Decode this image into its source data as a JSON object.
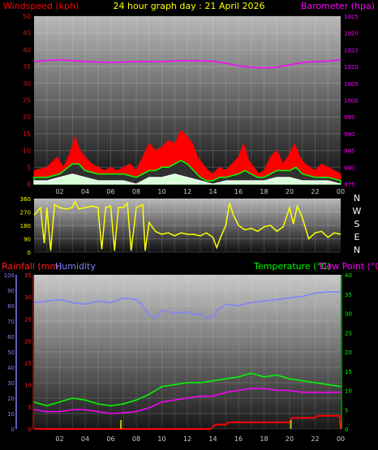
{
  "header": {
    "title": "24 hour graph day : 21 April 2026",
    "windspeed_label": "Windspeed (kph)",
    "barometer_label": "Barometer (hpa)"
  },
  "bottom_header": {
    "rainfall_label": "Rainfall (mm)",
    "humidity_label": "Humidity",
    "temperature_label": "Temperature (°C)",
    "dewpoint_label": "Dew Point (°C)"
  },
  "colors": {
    "windspeed": "#ff0000",
    "gust": "#ff0000",
    "avg_wind": "#00ff00",
    "wind_low": "#d8ffd8",
    "barometer": "#ff00ff",
    "direction": "#ffff00",
    "rainfall": "#ff0000",
    "humidity": "#8080ff",
    "temperature": "#00ff00",
    "dewpoint": "#ff00ff",
    "rain_rate": "#c0c000"
  },
  "chart_data": [
    {
      "type": "area",
      "name": "wind-barometer",
      "x_ticks": [
        "02",
        "04",
        "06",
        "08",
        "10",
        "12",
        "14",
        "16",
        "18",
        "20",
        "22",
        "00"
      ],
      "y_left_ticks": [
        "0",
        "5",
        "10",
        "15",
        "20",
        "25",
        "30",
        "35",
        "40",
        "45",
        "50"
      ],
      "y_left_range": [
        0,
        50
      ],
      "y_right_ticks": [
        "975",
        "980",
        "985",
        "990",
        "995",
        "1000",
        "1005",
        "1010",
        "1015",
        "1020",
        "1025"
      ],
      "y_right_range": [
        975,
        1025
      ],
      "x_range_hours": [
        0,
        24
      ],
      "gust": [
        [
          0,
          4
        ],
        [
          1,
          5
        ],
        [
          1.8,
          8
        ],
        [
          2.3,
          5
        ],
        [
          2.8,
          9
        ],
        [
          3.2,
          14
        ],
        [
          3.6,
          10
        ],
        [
          4,
          8
        ],
        [
          4.5,
          6
        ],
        [
          5,
          5
        ],
        [
          5.5,
          4
        ],
        [
          6,
          5
        ],
        [
          6.5,
          4
        ],
        [
          7,
          5
        ],
        [
          7.5,
          6
        ],
        [
          8,
          4
        ],
        [
          8.5,
          8
        ],
        [
          9,
          12
        ],
        [
          9.5,
          10
        ],
        [
          10,
          11
        ],
        [
          10.5,
          13
        ],
        [
          11,
          12
        ],
        [
          11.5,
          16
        ],
        [
          12,
          14
        ],
        [
          12.4,
          12
        ],
        [
          12.8,
          8
        ],
        [
          13.2,
          6
        ],
        [
          13.6,
          4
        ],
        [
          14,
          3
        ],
        [
          14.5,
          5
        ],
        [
          15,
          4
        ],
        [
          15.5,
          6
        ],
        [
          16,
          8
        ],
        [
          16.4,
          12
        ],
        [
          16.8,
          7
        ],
        [
          17.2,
          5
        ],
        [
          17.6,
          3
        ],
        [
          18,
          4
        ],
        [
          18.5,
          8
        ],
        [
          19,
          10
        ],
        [
          19.5,
          6
        ],
        [
          20,
          9
        ],
        [
          20.4,
          12
        ],
        [
          20.8,
          8
        ],
        [
          21.2,
          6
        ],
        [
          21.6,
          5
        ],
        [
          22,
          4
        ],
        [
          22.5,
          6
        ],
        [
          23,
          5
        ],
        [
          23.5,
          4
        ],
        [
          24,
          3
        ]
      ],
      "avg_wind": [
        [
          0,
          2
        ],
        [
          1,
          2
        ],
        [
          2,
          3
        ],
        [
          3,
          6
        ],
        [
          3.5,
          6
        ],
        [
          4,
          4
        ],
        [
          5,
          3
        ],
        [
          6,
          3
        ],
        [
          7,
          3
        ],
        [
          8,
          2
        ],
        [
          8.5,
          3
        ],
        [
          9,
          4
        ],
        [
          9.5,
          4
        ],
        [
          10,
          5
        ],
        [
          10.5,
          5
        ],
        [
          11,
          6
        ],
        [
          11.5,
          7
        ],
        [
          12,
          6
        ],
        [
          12.5,
          4
        ],
        [
          13,
          2
        ],
        [
          13.5,
          1
        ],
        [
          14,
          1
        ],
        [
          14.5,
          2
        ],
        [
          15,
          2
        ],
        [
          16,
          3
        ],
        [
          16.5,
          4
        ],
        [
          17,
          3
        ],
        [
          17.5,
          2
        ],
        [
          18,
          2
        ],
        [
          18.5,
          3
        ],
        [
          19,
          4
        ],
        [
          20,
          4
        ],
        [
          20.5,
          5
        ],
        [
          21,
          3
        ],
        [
          22,
          2
        ],
        [
          23,
          2
        ],
        [
          24,
          1
        ]
      ],
      "wind_low": [
        [
          0,
          1
        ],
        [
          1,
          1
        ],
        [
          2,
          2
        ],
        [
          3,
          3
        ],
        [
          4,
          2
        ],
        [
          5,
          1
        ],
        [
          6,
          1
        ],
        [
          7,
          1
        ],
        [
          8,
          0
        ],
        [
          9,
          2
        ],
        [
          10,
          2
        ],
        [
          11,
          3
        ],
        [
          12,
          2
        ],
        [
          13,
          1
        ],
        [
          14,
          0
        ],
        [
          15,
          1
        ],
        [
          16,
          1
        ],
        [
          17,
          1
        ],
        [
          18,
          1
        ],
        [
          19,
          2
        ],
        [
          20,
          2
        ],
        [
          21,
          1
        ],
        [
          22,
          1
        ],
        [
          23,
          1
        ],
        [
          24,
          0
        ]
      ],
      "barometer": [
        [
          0,
          1011.5
        ],
        [
          2,
          1012.0
        ],
        [
          4,
          1011.5
        ],
        [
          6,
          1011.2
        ],
        [
          8,
          1011.5
        ],
        [
          10,
          1011.5
        ],
        [
          12,
          1011.8
        ],
        [
          14,
          1011.6
        ],
        [
          15,
          1011.0
        ],
        [
          16,
          1010.2
        ],
        [
          17,
          1009.8
        ],
        [
          18,
          1009.6
        ],
        [
          19,
          1009.8
        ],
        [
          20,
          1010.5
        ],
        [
          21,
          1011.2
        ],
        [
          22,
          1011.5
        ],
        [
          23,
          1011.6
        ],
        [
          24,
          1012.0
        ]
      ]
    },
    {
      "type": "line",
      "name": "wind-direction",
      "y_left_ticks": [
        "360",
        "270",
        "180",
        "90",
        "0"
      ],
      "y_right_labels": [
        "N",
        "W",
        "S",
        "E",
        "N"
      ],
      "y_range": [
        0,
        360
      ],
      "x_range_hours": [
        0,
        24
      ],
      "direction": [
        [
          0,
          250
        ],
        [
          0.5,
          300
        ],
        [
          0.8,
          60
        ],
        [
          1,
          300
        ],
        [
          1.3,
          10
        ],
        [
          1.6,
          320
        ],
        [
          2,
          300
        ],
        [
          2.5,
          290
        ],
        [
          3,
          300
        ],
        [
          3.2,
          340
        ],
        [
          3.5,
          290
        ],
        [
          4,
          300
        ],
        [
          4.5,
          310
        ],
        [
          5,
          300
        ],
        [
          5.3,
          20
        ],
        [
          5.6,
          300
        ],
        [
          6,
          310
        ],
        [
          6.3,
          10
        ],
        [
          6.6,
          300
        ],
        [
          7,
          300
        ],
        [
          7.3,
          330
        ],
        [
          7.6,
          10
        ],
        [
          8,
          300
        ],
        [
          8.5,
          320
        ],
        [
          8.7,
          10
        ],
        [
          9,
          200
        ],
        [
          9.5,
          140
        ],
        [
          10,
          120
        ],
        [
          10.5,
          130
        ],
        [
          11,
          110
        ],
        [
          11.5,
          130
        ],
        [
          12,
          120
        ],
        [
          12.5,
          120
        ],
        [
          13,
          110
        ],
        [
          13.5,
          130
        ],
        [
          14,
          100
        ],
        [
          14.3,
          30
        ],
        [
          14.6,
          100
        ],
        [
          15,
          180
        ],
        [
          15.3,
          330
        ],
        [
          15.6,
          250
        ],
        [
          16,
          180
        ],
        [
          16.5,
          150
        ],
        [
          17,
          160
        ],
        [
          17.5,
          140
        ],
        [
          18,
          170
        ],
        [
          18.5,
          180
        ],
        [
          19,
          140
        ],
        [
          19.5,
          170
        ],
        [
          20,
          300
        ],
        [
          20.3,
          190
        ],
        [
          20.6,
          310
        ],
        [
          21,
          230
        ],
        [
          21.5,
          90
        ],
        [
          22,
          130
        ],
        [
          22.5,
          140
        ],
        [
          23,
          100
        ],
        [
          23.5,
          130
        ],
        [
          24,
          120
        ]
      ]
    },
    {
      "type": "line",
      "name": "rain-humidity-temperature",
      "x_ticks": [
        "02",
        "04",
        "06",
        "08",
        "10",
        "12",
        "14",
        "16",
        "18",
        "20",
        "22",
        "00"
      ],
      "y_left_outer_ticks": [
        "0",
        "10",
        "20",
        "30",
        "40",
        "50",
        "60",
        "70",
        "80",
        "90",
        "100"
      ],
      "y_left_outer_range": [
        0,
        100
      ],
      "y_left_inner_ticks": [
        "0",
        "5",
        "10",
        "15",
        "20",
        "25",
        "30",
        "35"
      ],
      "y_left_inner_range": [
        0,
        35
      ],
      "y_right_ticks": [
        "0",
        "5",
        "10",
        "15",
        "20",
        "25",
        "30",
        "35",
        "40"
      ],
      "y_right_range": [
        0,
        40
      ],
      "x_range_hours": [
        0,
        24
      ],
      "humidity": [
        [
          0,
          82
        ],
        [
          1,
          83
        ],
        [
          2,
          84
        ],
        [
          3,
          82
        ],
        [
          4,
          81
        ],
        [
          5,
          83
        ],
        [
          6,
          82
        ],
        [
          7,
          85
        ],
        [
          8,
          84
        ],
        [
          8.5,
          80
        ],
        [
          9,
          74
        ],
        [
          9.5,
          72
        ],
        [
          10,
          77
        ],
        [
          11,
          75
        ],
        [
          12,
          76
        ],
        [
          12.5,
          74
        ],
        [
          13,
          75
        ],
        [
          13.5,
          72
        ],
        [
          14,
          73
        ],
        [
          14.5,
          78
        ],
        [
          15,
          81
        ],
        [
          16,
          80
        ],
        [
          17,
          82
        ],
        [
          18,
          83
        ],
        [
          19,
          84
        ],
        [
          20,
          85
        ],
        [
          21,
          86
        ],
        [
          22,
          88
        ],
        [
          23,
          89
        ],
        [
          24,
          89
        ]
      ],
      "temperature": [
        [
          0,
          7
        ],
        [
          1,
          6
        ],
        [
          2,
          7
        ],
        [
          3,
          8
        ],
        [
          4,
          7.5
        ],
        [
          5,
          6.5
        ],
        [
          6,
          6
        ],
        [
          7,
          6.5
        ],
        [
          8,
          7.5
        ],
        [
          9,
          9
        ],
        [
          10,
          11
        ],
        [
          11,
          11.5
        ],
        [
          12,
          12
        ],
        [
          13,
          12
        ],
        [
          14,
          12.5
        ],
        [
          15,
          13
        ],
        [
          16,
          13.5
        ],
        [
          17,
          14.5
        ],
        [
          18,
          13.5
        ],
        [
          19,
          14
        ],
        [
          20,
          13
        ],
        [
          21,
          12.5
        ],
        [
          22,
          12
        ],
        [
          23,
          11.5
        ],
        [
          24,
          11
        ]
      ],
      "dewpoint": [
        [
          0,
          5
        ],
        [
          1,
          4.5
        ],
        [
          2,
          4.5
        ],
        [
          3,
          5
        ],
        [
          4,
          5
        ],
        [
          5,
          4.5
        ],
        [
          6,
          4
        ],
        [
          7,
          4.2
        ],
        [
          8,
          4.5
        ],
        [
          9,
          5.5
        ],
        [
          10,
          7
        ],
        [
          11,
          7.5
        ],
        [
          12,
          8
        ],
        [
          13,
          8.5
        ],
        [
          14,
          8.5
        ],
        [
          15,
          9.5
        ],
        [
          16,
          10
        ],
        [
          17,
          10.5
        ],
        [
          18,
          10.5
        ],
        [
          19,
          10
        ],
        [
          20,
          10
        ],
        [
          21,
          9.5
        ],
        [
          22,
          9.5
        ],
        [
          23,
          9.5
        ],
        [
          24,
          9.5
        ]
      ],
      "rainfall": [
        [
          0,
          0
        ],
        [
          13.8,
          0
        ],
        [
          14.2,
          1
        ],
        [
          15,
          1
        ],
        [
          15.2,
          1.5
        ],
        [
          20,
          1.5
        ],
        [
          20.2,
          2.5
        ],
        [
          22,
          2.5
        ],
        [
          22.2,
          3
        ],
        [
          23.9,
          3
        ],
        [
          24,
          0
        ]
      ],
      "rain_rate_marks": [
        [
          6.8,
          2
        ],
        [
          20.1,
          2
        ]
      ]
    }
  ]
}
